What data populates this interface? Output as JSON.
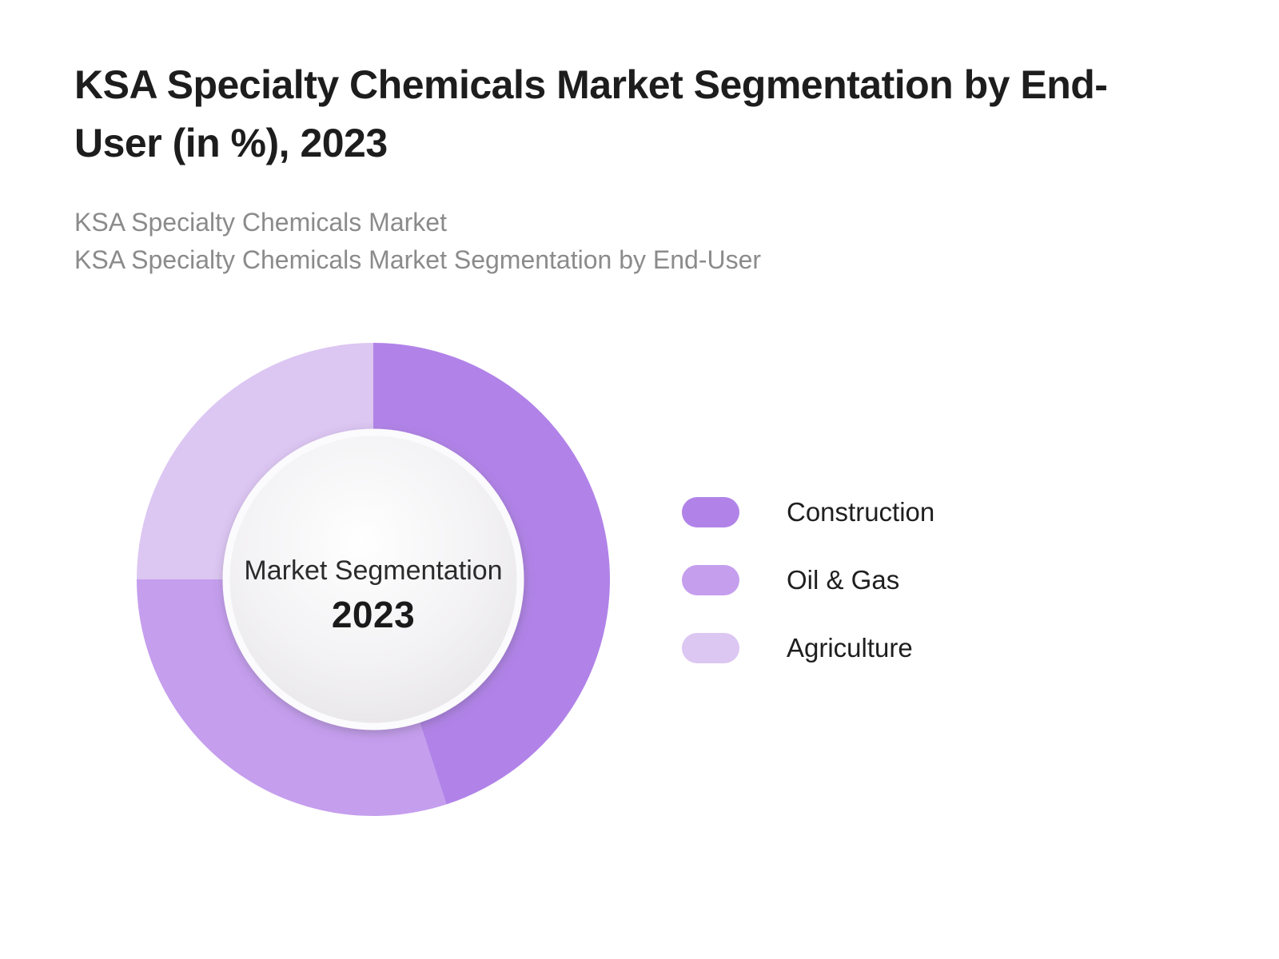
{
  "header": {
    "title_lines": [
      "KSA Specialty Chemicals Market Segmentation by End-",
      "User (in %), 2023"
    ],
    "subtitle_lines": [
      "KSA Specialty Chemicals Market",
      "KSA Specialty Chemicals Market Segmentation by End-User"
    ]
  },
  "donut_center": {
    "label": "Market Segmentation",
    "year": "2023"
  },
  "legend": {
    "items": [
      {
        "label": "Construction",
        "color": "#b183e8"
      },
      {
        "label": "Oil & Gas",
        "color": "#c59eee"
      },
      {
        "label": "Agriculture",
        "color": "#dcc6f2"
      }
    ]
  },
  "chart_data": {
    "type": "pie",
    "variant": "donut",
    "title": "KSA Specialty Chemicals Market Segmentation by End-User (in %), 2023",
    "categories": [
      "Construction",
      "Oil & Gas",
      "Agriculture"
    ],
    "values": [
      45,
      30,
      25
    ],
    "unit": "%",
    "colors": [
      "#b183e8",
      "#c59eee",
      "#dcc6f2"
    ],
    "start_angle_deg": 0,
    "direction": "clockwise",
    "center_label": "Market Segmentation",
    "center_sublabel": "2023",
    "legend_position": "right",
    "inner_hole_color": "#ffffff",
    "background": "#ffffff"
  }
}
